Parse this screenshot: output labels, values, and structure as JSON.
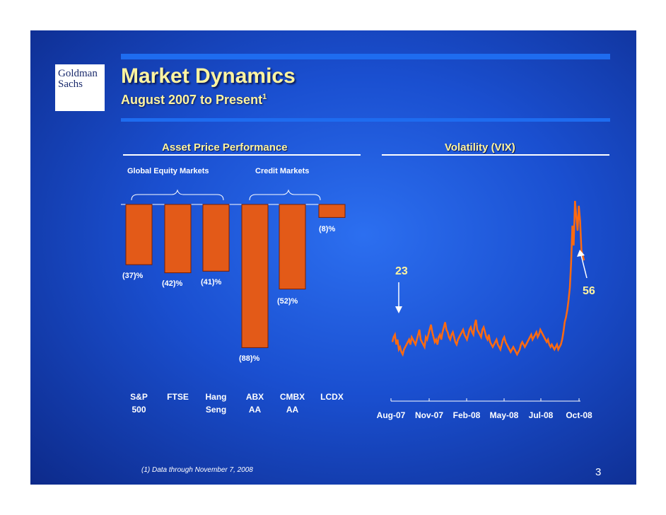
{
  "logo": {
    "line1": "Goldman",
    "line2": "Sachs"
  },
  "title": "Market Dynamics",
  "subtitle": "August 2007 to Present",
  "subtitle_note": "1",
  "footnote": "(1)   Data through November 7, 2008",
  "page_number": "3",
  "colors": {
    "accent": "#1e6cf0",
    "title": "#fff4a0",
    "bar": "#e35a18",
    "bar_border": "#7a1e00",
    "line": "#ff6a10"
  },
  "chart_data": [
    {
      "type": "bar",
      "title": "Asset Price Performance",
      "groups": [
        {
          "label": "Global Equity Markets",
          "categories": [
            "S&P 500",
            "FTSE",
            "Hang Seng"
          ]
        },
        {
          "label": "Credit Markets",
          "categories": [
            "ABX AA",
            "CMBX AA",
            "LCDX"
          ]
        }
      ],
      "categories": [
        {
          "line1": "S&P",
          "line2": "500"
        },
        {
          "line1": "FTSE",
          "line2": ""
        },
        {
          "line1": "Hang",
          "line2": "Seng"
        },
        {
          "line1": "ABX",
          "line2": "AA"
        },
        {
          "line1": "CMBX",
          "line2": "AA"
        },
        {
          "line1": "LCDX",
          "line2": ""
        }
      ],
      "values": [
        -37,
        -42,
        -41,
        -88,
        -52,
        -8
      ],
      "data_labels": [
        "(37)%",
        "(42)%",
        "(41)%",
        "(88)%",
        "(52)%",
        "(8)%"
      ],
      "unit": "%"
    },
    {
      "type": "line",
      "title": "Volatility (VIX)",
      "x_tick_labels": [
        "Aug-07",
        "Nov-07",
        "Feb-08",
        "May-08",
        "Jul-08",
        "Oct-08"
      ],
      "annotations": [
        {
          "label": "23",
          "x": "Aug-07"
        },
        {
          "label": "56",
          "x": "Nov-08"
        }
      ],
      "series": [
        {
          "values": [
            23,
            25,
            26,
            22,
            24,
            20,
            21,
            19,
            18,
            20,
            21,
            22,
            23,
            24,
            22,
            25,
            24,
            23,
            22,
            24,
            26,
            28,
            24,
            23,
            22,
            21,
            25,
            24,
            26,
            28,
            30,
            27,
            25,
            23,
            24,
            22,
            25,
            26,
            24,
            27,
            29,
            31,
            28,
            27,
            25,
            24,
            26,
            27,
            25,
            23,
            22,
            24,
            25,
            26,
            27,
            28,
            26,
            25,
            24,
            26,
            28,
            29,
            27,
            26,
            30,
            32,
            28,
            27,
            26,
            25,
            28,
            29,
            27,
            25,
            24,
            26,
            23,
            22,
            21,
            22,
            23,
            24,
            22,
            21,
            20,
            22,
            24,
            25,
            23,
            22,
            21,
            20,
            19,
            20,
            21,
            20,
            19,
            18,
            19,
            20,
            22,
            23,
            22,
            21,
            22,
            23,
            24,
            25,
            26,
            24,
            25,
            26,
            27,
            25,
            26,
            28,
            27,
            26,
            25,
            24,
            23,
            24,
            22,
            21,
            22,
            21,
            20,
            21,
            22,
            20,
            21,
            22,
            24,
            27,
            31,
            33,
            36,
            40,
            45,
            55,
            70,
            62,
            80,
            74,
            68,
            78,
            72,
            60,
            58,
            56
          ]
        }
      ]
    }
  ]
}
